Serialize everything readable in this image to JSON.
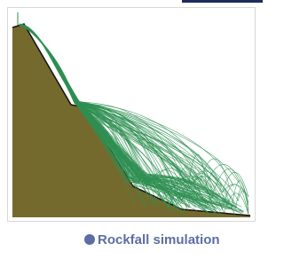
{
  "caption": "Rockfall simulation"
}
